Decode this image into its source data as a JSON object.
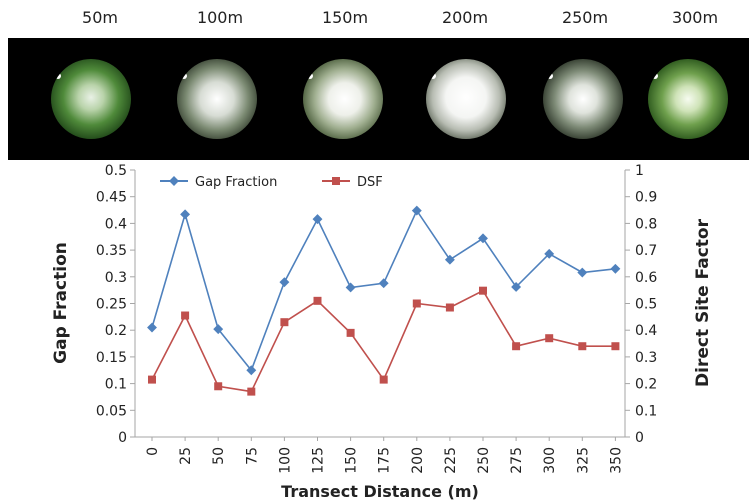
{
  "photo_labels": [
    "50m",
    "100m",
    "150m",
    "200m",
    "250m",
    "300m"
  ],
  "colors": {
    "gap_fraction": "#4f81bd",
    "dsf": "#c0504d",
    "strip": "#000000"
  },
  "chart_data": {
    "type": "line",
    "xlabel": "Transect Distance (m)",
    "ylabel_left": "Gap Fraction",
    "ylabel_right": "Direct Site Factor",
    "categories": [
      "0",
      "25",
      "50",
      "75",
      "100",
      "125",
      "150",
      "175",
      "200",
      "225",
      "250",
      "275",
      "300",
      "325",
      "350"
    ],
    "ylim_left": [
      0,
      0.5
    ],
    "ylim_right": [
      0,
      1
    ],
    "y_ticks_left": [
      "0",
      "0.05",
      "0.1",
      "0.15",
      "0.2",
      "0.25",
      "0.3",
      "0.35",
      "0.4",
      "0.45",
      "0.5"
    ],
    "y_ticks_right": [
      "0",
      "0.1",
      "0.2",
      "0.3",
      "0.4",
      "0.5",
      "0.6",
      "0.7",
      "0.8",
      "0.9",
      "1"
    ],
    "legend_position": "top-left",
    "grid": false,
    "series": [
      {
        "name": "Gap Fraction",
        "axis": "left",
        "marker": "diamond",
        "values": [
          0.205,
          0.417,
          0.202,
          0.125,
          0.29,
          0.408,
          0.28,
          0.288,
          0.424,
          0.332,
          0.372,
          0.281,
          0.343,
          0.308,
          0.315
        ]
      },
      {
        "name": "DSF",
        "axis": "right",
        "marker": "square",
        "values": [
          0.215,
          0.455,
          0.19,
          0.17,
          0.43,
          0.51,
          0.39,
          0.215,
          0.5,
          0.485,
          0.548,
          0.34,
          0.37,
          0.34,
          0.34
        ]
      }
    ]
  }
}
